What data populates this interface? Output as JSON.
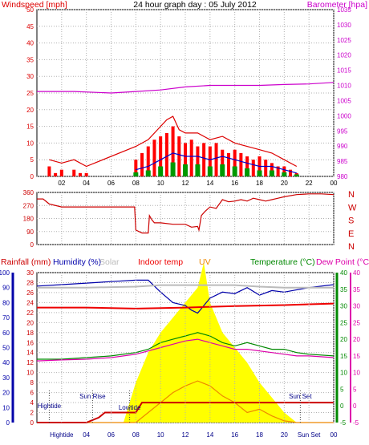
{
  "title": "24 hour graph day : 05 July 2012",
  "colors": {
    "wind": "#dd0000",
    "gust": "#ff0000",
    "avg": "#0000cc",
    "low": "#009900",
    "baro": "#cc00cc",
    "dir": "#cc0000",
    "rain": "#cc0000",
    "humidity": "#0000aa",
    "solar": "#bbbbbb",
    "indoor": "#ee0000",
    "uv": "#ee8800",
    "temp": "#008800",
    "dew": "#dd00aa",
    "sun": "#ffff00",
    "grid": "#b0b0b0",
    "axis": "#000000"
  },
  "chart_data": [
    {
      "type": "bar",
      "title": "24 hour graph day : 05 July 2012",
      "y_left_label": "Windspeed [mph]",
      "y_right_label": "Barometer [hpa]",
      "x_ticks": [
        "02",
        "04",
        "06",
        "08",
        "10",
        "12",
        "14",
        "16",
        "18",
        "20",
        "22",
        "00"
      ],
      "y_left_ticks": [
        "0",
        "5",
        "10",
        "15",
        "20",
        "25",
        "30",
        "35",
        "40",
        "45",
        "50"
      ],
      "y_right_ticks": [
        "980",
        "985",
        "990",
        "995",
        "1000",
        "1005",
        "1010",
        "1015",
        "1020",
        "1025",
        "1030",
        "1035"
      ],
      "y_left_range": [
        0,
        50
      ],
      "y_right_range": [
        980,
        1035
      ],
      "x_range_hours": [
        0,
        24
      ],
      "series": [
        {
          "name": "Windspeed",
          "x": [
            0.5,
            1,
            1.5,
            2,
            2.5,
            3,
            3.5,
            4,
            6,
            7.5,
            8,
            8.5,
            9,
            9.5,
            10,
            10.5,
            11,
            11.5,
            12,
            12.5,
            13,
            13.5,
            14,
            14.5,
            15,
            15.5,
            16,
            16.5,
            17,
            17.5,
            18,
            18.5,
            19,
            19.5,
            20,
            20.5,
            21,
            21.5,
            22,
            24
          ],
          "values": [
            0,
            3,
            1,
            2,
            0,
            2,
            1,
            1,
            0,
            0,
            5,
            7,
            9,
            11,
            12,
            13,
            15,
            12,
            10,
            11,
            9,
            10,
            9,
            10,
            8,
            7,
            8,
            7,
            6,
            5,
            6,
            5,
            4,
            3,
            3,
            2,
            1,
            0,
            0,
            0
          ]
        },
        {
          "name": "Gust",
          "x": [
            1,
            2,
            3,
            4,
            8,
            9,
            10,
            10.5,
            11,
            11.5,
            12,
            13,
            14,
            15,
            16,
            17,
            18,
            19,
            20,
            21
          ],
          "values": [
            5,
            4,
            5,
            3,
            9,
            11,
            15,
            17,
            18,
            14,
            13,
            13,
            11,
            12,
            10,
            9,
            8,
            7,
            5,
            3
          ]
        },
        {
          "name": "Average",
          "x": [
            8,
            9,
            10,
            11,
            12,
            13,
            14,
            15,
            16,
            17,
            18,
            19,
            20,
            21
          ],
          "values": [
            2,
            3,
            5,
            7,
            6,
            6,
            5,
            6,
            5,
            4,
            3,
            3,
            2,
            1
          ]
        },
        {
          "name": "Barometer",
          "x": [
            0,
            3,
            6,
            8,
            10,
            12,
            14,
            16,
            18,
            20,
            22,
            24
          ],
          "values": [
            1008,
            1008,
            1007.5,
            1008,
            1008.5,
            1009.5,
            1010,
            1010,
            1010,
            1010.3,
            1010.5,
            1011
          ]
        }
      ]
    },
    {
      "type": "line",
      "y_right_label": "N W S E N",
      "y_left_ticks": [
        "0",
        "90",
        "180",
        "270",
        "360"
      ],
      "y_range": [
        0,
        360
      ],
      "series": [
        {
          "name": "Wind direction",
          "x": [
            0,
            0.5,
            1,
            2,
            3,
            4,
            5,
            6,
            7,
            7.9,
            8,
            8.5,
            9,
            9.1,
            9.3,
            9.5,
            10,
            11,
            12,
            12.5,
            13,
            13.1,
            13.3,
            13.6,
            14,
            14.5,
            15,
            15.5,
            16,
            16.5,
            17,
            17.5,
            18,
            18.5,
            19,
            19.5,
            20,
            21,
            22,
            23,
            24
          ],
          "values": [
            315,
            315,
            280,
            260,
            260,
            260,
            260,
            260,
            260,
            260,
            100,
            80,
            80,
            200,
            170,
            150,
            150,
            140,
            140,
            120,
            125,
            100,
            200,
            230,
            260,
            250,
            310,
            295,
            300,
            310,
            300,
            320,
            310,
            300,
            310,
            320,
            330,
            345,
            350,
            350,
            345
          ]
        }
      ]
    },
    {
      "type": "line",
      "labels": [
        "Rainfall (mm)",
        "Humidity (%)",
        "Solar",
        "Indoor temp",
        "UV",
        "Temperature (°C)",
        "Dew Point (°C)"
      ],
      "y_rain_ticks": [
        "0",
        "2",
        "4",
        "6",
        "8",
        "10",
        "12",
        "14",
        "16",
        "18",
        "20",
        "22",
        "24",
        "26",
        "28",
        "30"
      ],
      "y_humidity_ticks": [
        "0",
        "10",
        "20",
        "30",
        "40",
        "50",
        "60",
        "70",
        "80",
        "90",
        "100"
      ],
      "y_temp_ticks": [
        "-5",
        "0",
        "5",
        "10",
        "15",
        "20",
        "25",
        "30",
        "35",
        "40"
      ],
      "y_temp_range": [
        -5,
        40
      ],
      "series": [
        {
          "name": "Humidity",
          "x": [
            0,
            2,
            4,
            6,
            8,
            9,
            10,
            11,
            12,
            12.5,
            13,
            13.5,
            14,
            15,
            16,
            17,
            18,
            19,
            20,
            22,
            24
          ],
          "values": [
            91,
            92,
            93,
            94,
            95,
            95,
            87,
            80,
            78,
            75,
            73,
            78,
            83,
            87,
            86,
            90,
            85,
            88,
            87,
            90,
            92
          ]
        },
        {
          "name": "Solar",
          "x": [
            0,
            4,
            8,
            10,
            12,
            14,
            16,
            18,
            20,
            24
          ],
          "values": [
            27,
            27,
            27.2,
            27.5,
            27.5,
            27.5,
            27.5,
            27.2,
            27,
            27
          ]
        },
        {
          "name": "Indoor temp",
          "x": [
            0,
            4,
            8,
            12,
            16,
            20,
            24
          ],
          "values": [
            23,
            23,
            22.8,
            23,
            23.3,
            23.5,
            23.8
          ]
        },
        {
          "name": "Temperature",
          "x": [
            0,
            2,
            4,
            6,
            8,
            9,
            10,
            11,
            12,
            12.5,
            13,
            14,
            15,
            16,
            17,
            18,
            19,
            20,
            21,
            22,
            24
          ],
          "values": [
            14,
            14,
            14.5,
            15,
            16,
            17,
            19,
            20,
            21,
            21.5,
            22,
            21,
            19,
            18,
            19,
            18,
            17,
            17,
            16,
            15.5,
            15
          ]
        },
        {
          "name": "Dew Point",
          "x": [
            0,
            2,
            4,
            6,
            8,
            9,
            10,
            11,
            12,
            13,
            14,
            15,
            16,
            17,
            18,
            19,
            20,
            21,
            22,
            24
          ],
          "values": [
            13.5,
            13.8,
            14,
            14.5,
            15.5,
            16.5,
            17.5,
            18.5,
            19.5,
            20,
            19,
            18,
            17,
            17,
            16.5,
            16,
            15.5,
            15,
            15,
            14.5
          ]
        },
        {
          "name": "UV",
          "x": [
            0,
            8,
            9,
            10,
            11,
            12,
            13,
            14,
            15,
            16,
            17,
            18,
            19,
            20,
            21,
            24
          ],
          "values": [
            -5,
            -5,
            -2,
            1,
            4,
            6,
            7.5,
            6,
            3,
            1,
            -2,
            -1,
            -3,
            -4.5,
            -5,
            -5
          ]
        },
        {
          "name": "Sun",
          "x": [
            7,
            8,
            9,
            10,
            11,
            12,
            13,
            13.5,
            14,
            15,
            16,
            17,
            18,
            19,
            20,
            21
          ],
          "values": [
            0,
            8,
            14,
            18,
            21,
            24,
            27,
            32,
            24,
            18,
            15,
            12,
            8,
            5,
            2,
            0
          ]
        },
        {
          "name": "Rainfall",
          "x": [
            0,
            4,
            5,
            5.5,
            6,
            8,
            8.5,
            24
          ],
          "values": [
            0,
            0,
            1,
            2,
            2,
            2,
            4,
            4
          ]
        }
      ],
      "annotations": [
        {
          "text": "Hightide",
          "x": 1
        },
        {
          "text": "Sun Rise",
          "x": 4.5
        },
        {
          "text": "Lowtide",
          "x": 7.5
        },
        {
          "text": "Sun Set",
          "x": 21.3
        }
      ],
      "x_ticks": [
        "Hightide",
        "04",
        "06",
        "08",
        "10",
        "12",
        "14",
        "16",
        "18",
        "20",
        "Sun Set",
        "00"
      ]
    }
  ]
}
